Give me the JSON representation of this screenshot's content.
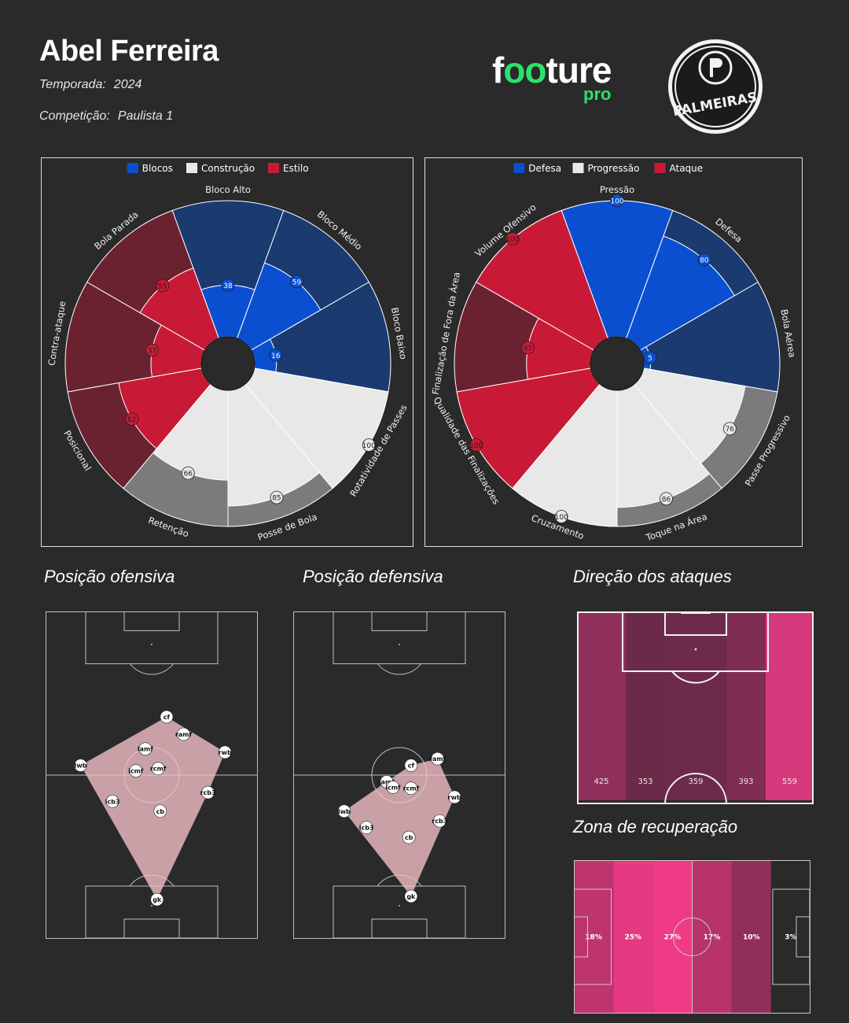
{
  "header": {
    "coach_name": "Abel Ferreira",
    "season_label": "Temporada:",
    "season_value": "2024",
    "competition_label": "Competição:",
    "competition_value": "Paulista 1",
    "brand_pre": "f",
    "brand_oo": "oo",
    "brand_post": "ture",
    "brand_sub": "pro",
    "club_badge_text": "PALMEIRAS"
  },
  "colors": {
    "background": "#2a2a2a",
    "blue": "#0b4fd1",
    "blue_dark": "#1a3a70",
    "white": "#e8e8e8",
    "grey": "#7b7b7b",
    "red": "#c81a36",
    "red_dark": "#6b2230",
    "brand_green": "#2ee06b"
  },
  "sections": {
    "offensive_position": "Posição ofensiva",
    "defensive_position": "Posição defensiva",
    "attack_direction": "Direção dos ataques",
    "recovery_zone": "Zona de recuperação"
  },
  "chart_data": [
    {
      "type": "polar-bar",
      "legend": [
        {
          "name": "Blocos",
          "color": "#0b4fd1"
        },
        {
          "name": "Construção",
          "color": "#e8e8e8"
        },
        {
          "name": "Estilo",
          "color": "#c81a36"
        }
      ],
      "segments": [
        {
          "label": "Bloco Alto",
          "value": 38,
          "group": "Blocos"
        },
        {
          "label": "Bloco Médio",
          "value": 59,
          "group": "Blocos"
        },
        {
          "label": "Bloco Baixo",
          "value": 16,
          "group": "Blocos"
        },
        {
          "label": "Rotatividade de Passes",
          "value": 100,
          "group": "Construção"
        },
        {
          "label": "Posse de Bola",
          "value": 85,
          "group": "Construção"
        },
        {
          "label": "Retenção",
          "value": 66,
          "group": "Construção"
        },
        {
          "label": "Posicional",
          "value": 62,
          "group": "Estilo"
        },
        {
          "label": "Contra-ataque",
          "value": 37,
          "group": "Estilo"
        },
        {
          "label": "Bola Parada",
          "value": 55,
          "group": "Estilo"
        }
      ],
      "range": [
        0,
        100
      ]
    },
    {
      "type": "polar-bar",
      "legend": [
        {
          "name": "Defesa",
          "color": "#0b4fd1"
        },
        {
          "name": "Progressão",
          "color": "#e8e8e8"
        },
        {
          "name": "Ataque",
          "color": "#c81a36"
        }
      ],
      "segments": [
        {
          "label": "Pressão",
          "value": 100,
          "group": "Defesa"
        },
        {
          "label": "Defesa",
          "value": 80,
          "group": "Defesa"
        },
        {
          "label": "Bola Aérea",
          "value": 5,
          "group": "Defesa"
        },
        {
          "label": "Passe Progressivo",
          "value": 76,
          "group": "Progressão"
        },
        {
          "label": "Toque na Área",
          "value": 86,
          "group": "Progressão"
        },
        {
          "label": "Cruzamento",
          "value": 100,
          "group": "Progressão"
        },
        {
          "label": "Qualidade das Finalizações",
          "value": 100,
          "group": "Ataque"
        },
        {
          "label": "Finalização de Fora da Área",
          "value": 47,
          "group": "Ataque"
        },
        {
          "label": "Volume Ofensivo",
          "value": 100,
          "group": "Ataque"
        }
      ],
      "range": [
        0,
        100
      ]
    },
    {
      "type": "pitch-positions",
      "title": "Posição ofensiva",
      "players": [
        {
          "label": "cf",
          "x": 0.57,
          "y": 0.322
        },
        {
          "label": "ramf",
          "x": 0.65,
          "y": 0.375
        },
        {
          "label": "rwb",
          "x": 0.845,
          "y": 0.43
        },
        {
          "label": "lamf",
          "x": 0.47,
          "y": 0.42
        },
        {
          "label": "lwb",
          "x": 0.165,
          "y": 0.47
        },
        {
          "label": "lcmf",
          "x": 0.425,
          "y": 0.487
        },
        {
          "label": "rcmf",
          "x": 0.53,
          "y": 0.48
        },
        {
          "label": "rcb3",
          "x": 0.765,
          "y": 0.553
        },
        {
          "label": "lcb3",
          "x": 0.315,
          "y": 0.58
        },
        {
          "label": "cb",
          "x": 0.54,
          "y": 0.61
        },
        {
          "label": "gk",
          "x": 0.525,
          "y": 0.88
        }
      ]
    },
    {
      "type": "pitch-positions",
      "title": "Posição defensiva",
      "players": [
        {
          "label": "ramf",
          "x": 0.68,
          "y": 0.45
        },
        {
          "label": "cf",
          "x": 0.555,
          "y": 0.47
        },
        {
          "label": "lamf",
          "x": 0.44,
          "y": 0.52
        },
        {
          "label": "lcmf",
          "x": 0.47,
          "y": 0.537
        },
        {
          "label": "rcmf",
          "x": 0.555,
          "y": 0.54
        },
        {
          "label": "rwb",
          "x": 0.76,
          "y": 0.567
        },
        {
          "label": "lwb",
          "x": 0.24,
          "y": 0.61
        },
        {
          "label": "rcb3",
          "x": 0.69,
          "y": 0.64
        },
        {
          "label": "lcb3",
          "x": 0.345,
          "y": 0.66
        },
        {
          "label": "cb",
          "x": 0.545,
          "y": 0.69
        },
        {
          "label": "gk",
          "x": 0.555,
          "y": 0.87
        }
      ]
    },
    {
      "type": "heatmap",
      "title": "Direção dos ataques",
      "categories": [
        "1",
        "2",
        "3",
        "4",
        "5"
      ],
      "values": [
        425,
        353,
        359,
        393,
        559
      ]
    },
    {
      "type": "heatmap",
      "title": "Zona de recuperação",
      "categories": [
        "1",
        "2",
        "3",
        "4",
        "5",
        "6"
      ],
      "values": [
        "18%",
        "25%",
        "27%",
        "17%",
        "10%",
        "3%"
      ]
    }
  ]
}
